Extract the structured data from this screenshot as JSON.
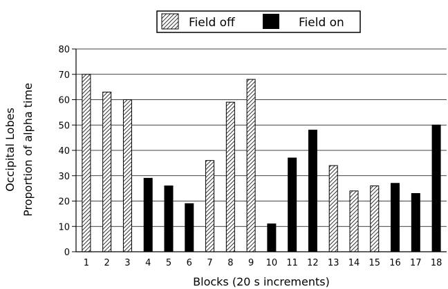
{
  "chart_data": {
    "type": "bar",
    "categories": [
      "1",
      "2",
      "3",
      "4",
      "5",
      "6",
      "7",
      "8",
      "9",
      "10",
      "11",
      "12",
      "13",
      "14",
      "15",
      "16",
      "17",
      "18"
    ],
    "values": [
      70,
      63,
      60,
      29,
      26,
      19,
      36,
      59,
      68,
      11,
      37,
      48,
      34,
      24,
      26,
      27,
      23,
      50
    ],
    "condition": [
      "off",
      "off",
      "off",
      "on",
      "on",
      "on",
      "off",
      "off",
      "off",
      "on",
      "on",
      "on",
      "off",
      "off",
      "off",
      "on",
      "on",
      "on"
    ],
    "series": [
      {
        "name": "Field off",
        "key": "off",
        "fill": "hatched"
      },
      {
        "name": "Field on",
        "key": "on",
        "fill": "solid",
        "color": "#000000"
      }
    ],
    "title": "",
    "xlabel": "Blocks (20 s increments)",
    "ylabel_lines": [
      "Occipital Lobes",
      "Proportion of alpha time"
    ],
    "ylim": [
      0,
      80
    ],
    "yticks": [
      0,
      10,
      20,
      30,
      40,
      50,
      60,
      70,
      80
    ],
    "grid": "horizontal",
    "legend_position": "top-center"
  }
}
